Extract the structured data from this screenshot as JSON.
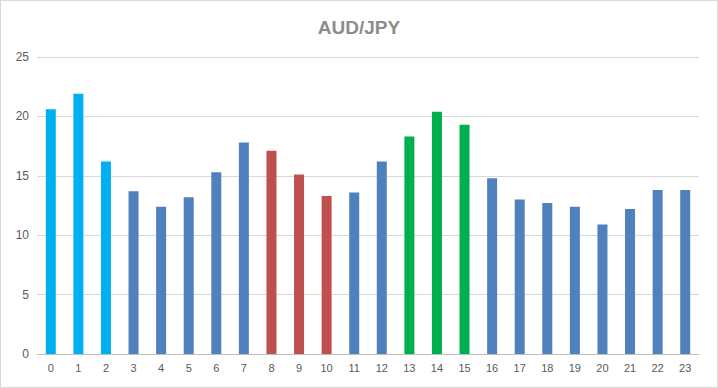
{
  "chart_data": {
    "type": "bar",
    "title": "AUD/JPY",
    "categories": [
      "0",
      "1",
      "2",
      "3",
      "4",
      "5",
      "6",
      "7",
      "8",
      "9",
      "10",
      "11",
      "12",
      "13",
      "14",
      "15",
      "16",
      "17",
      "18",
      "19",
      "20",
      "21",
      "22",
      "23"
    ],
    "values": [
      20.6,
      21.9,
      16.2,
      13.7,
      12.4,
      13.2,
      15.3,
      17.8,
      17.1,
      15.1,
      13.3,
      13.6,
      16.2,
      18.3,
      20.4,
      19.3,
      14.8,
      13.0,
      12.7,
      12.4,
      10.9,
      12.2,
      13.8,
      13.8
    ],
    "colors": [
      "#00b0f0",
      "#00b0f0",
      "#00b0f0",
      "#4f81bd",
      "#4f81bd",
      "#4f81bd",
      "#4f81bd",
      "#4f81bd",
      "#c0504d",
      "#c0504d",
      "#c0504d",
      "#4f81bd",
      "#4f81bd",
      "#00b050",
      "#00b050",
      "#00b050",
      "#4f81bd",
      "#4f81bd",
      "#4f81bd",
      "#4f81bd",
      "#4f81bd",
      "#4f81bd",
      "#4f81bd",
      "#4f81bd"
    ],
    "ylim": [
      0,
      25
    ],
    "yticks": [
      0,
      5,
      10,
      15,
      20,
      25
    ],
    "grid": true
  }
}
